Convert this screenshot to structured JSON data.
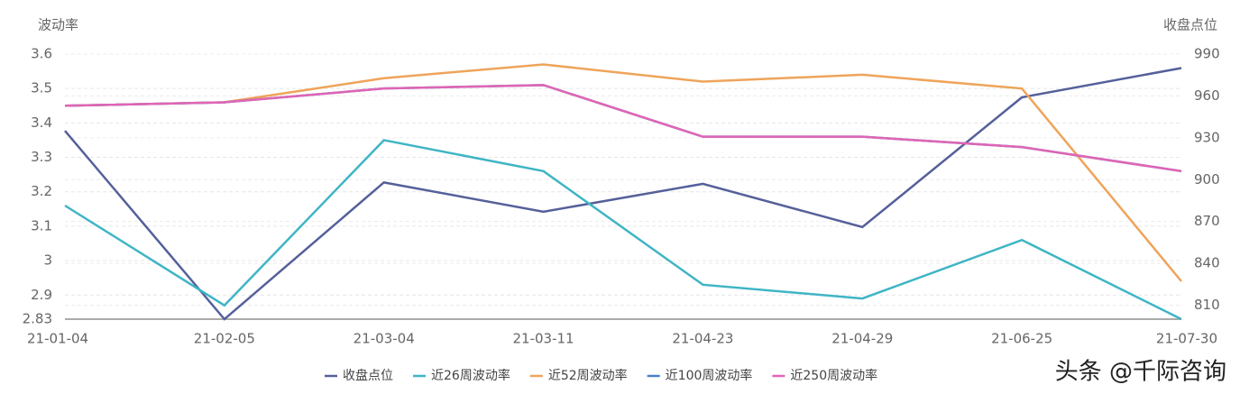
{
  "chart_data": {
    "type": "line",
    "y_label": "波动率",
    "y2_label": "收盘点位",
    "categories": [
      "21-01-04",
      "21-02-05",
      "21-03-04",
      "21-03-11",
      "21-04-23",
      "21-04-29",
      "21-06-25",
      "21-07-30"
    ],
    "series": [
      {
        "name": "收盘点位",
        "color": "#55609a",
        "axis": "y2",
        "values": [
          935,
          800,
          898,
          877,
          897,
          866,
          959,
          980
        ]
      },
      {
        "name": "近26周波动率",
        "color": "#3fb5c5",
        "values": [
          3.16,
          2.87,
          3.35,
          3.26,
          2.93,
          2.89,
          3.06,
          2.83
        ]
      },
      {
        "name": "近52周波动率",
        "color": "#eea45a",
        "values": [
          3.45,
          3.46,
          3.53,
          3.57,
          3.52,
          3.54,
          3.5,
          2.94
        ]
      },
      {
        "name": "近100周波动率",
        "color": "#4a7fc8",
        "values": [
          3.45,
          3.46,
          3.5,
          3.51,
          3.36,
          3.36,
          3.33,
          3.26
        ]
      },
      {
        "name": "近250周波动率",
        "color": "#e065b5",
        "values": [
          3.45,
          3.46,
          3.5,
          3.51,
          3.36,
          3.36,
          3.33,
          3.26
        ]
      }
    ],
    "ylim": [
      2.83,
      3.6
    ],
    "yticks": [
      2.83,
      2.9,
      3,
      3.1,
      3.2,
      3.3,
      3.4,
      3.5,
      3.6
    ],
    "y2lim": [
      800,
      990
    ],
    "y2ticks": [
      810,
      840,
      870,
      900,
      930,
      960,
      990
    ],
    "grid": true,
    "legend": "bottom",
    "watermark": "头条 @千际咨询"
  }
}
